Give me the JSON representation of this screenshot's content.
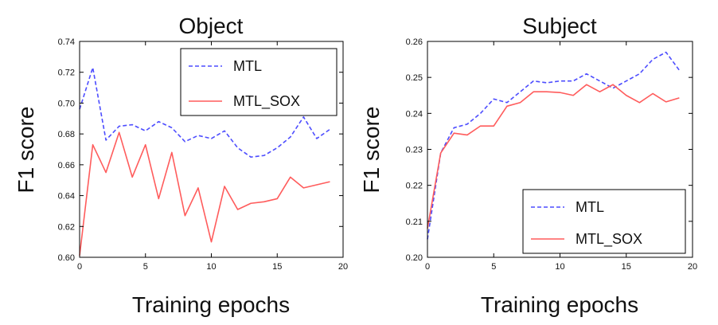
{
  "chart_data": [
    {
      "type": "line",
      "title": "Object",
      "xlabel": "Training epochs",
      "ylabel": "F1 score",
      "xlim": [
        0,
        20
      ],
      "ylim": [
        0.6,
        0.74
      ],
      "xticks": [
        0,
        5,
        10,
        15,
        20
      ],
      "xtick_labels": [
        "0",
        "5",
        "10",
        "15",
        "20"
      ],
      "yticks": [
        0.6,
        0.62,
        0.64,
        0.66,
        0.68,
        0.7,
        0.72,
        0.74
      ],
      "ytick_labels": [
        "0.60",
        "0.62",
        "0.64",
        "0.66",
        "0.68",
        "0.70",
        "0.72",
        "0.74"
      ],
      "grid": false,
      "legend_position": "top-right",
      "x": [
        0,
        1,
        2,
        3,
        4,
        5,
        6,
        7,
        8,
        9,
        10,
        11,
        12,
        13,
        14,
        15,
        16,
        17,
        18,
        19
      ],
      "series": [
        {
          "name": "MTL",
          "color": "#4d4dff",
          "style": "dashed",
          "values": [
            0.696,
            0.723,
            0.676,
            0.685,
            0.686,
            0.682,
            0.688,
            0.684,
            0.675,
            0.679,
            0.677,
            0.682,
            0.671,
            0.665,
            0.666,
            0.671,
            0.678,
            0.691,
            0.677,
            0.683
          ]
        },
        {
          "name": "MTL_SOX",
          "color": "#ff5c5c",
          "style": "solid",
          "values": [
            0.601,
            0.673,
            0.655,
            0.681,
            0.652,
            0.673,
            0.638,
            0.668,
            0.627,
            0.645,
            0.61,
            0.646,
            0.631,
            0.635,
            0.636,
            0.638,
            0.652,
            0.645,
            0.647,
            0.649
          ]
        }
      ]
    },
    {
      "type": "line",
      "title": "Subject",
      "xlabel": "Training epochs",
      "ylabel": "F1 score",
      "xlim": [
        0,
        20
      ],
      "ylim": [
        0.2,
        0.26
      ],
      "xticks": [
        0,
        5,
        10,
        15,
        20
      ],
      "xtick_labels": [
        "0",
        "5",
        "10",
        "15",
        "20"
      ],
      "yticks": [
        0.2,
        0.21,
        0.22,
        0.23,
        0.24,
        0.25,
        0.26
      ],
      "ytick_labels": [
        "0.20",
        "0.21",
        "0.22",
        "0.23",
        "0.24",
        "0.25",
        "0.26"
      ],
      "grid": false,
      "legend_position": "bottom-right",
      "x": [
        0,
        1,
        2,
        3,
        4,
        5,
        6,
        7,
        8,
        9,
        10,
        11,
        12,
        13,
        14,
        15,
        16,
        17,
        18,
        19
      ],
      "series": [
        {
          "name": "MTL",
          "color": "#4d4dff",
          "style": "dashed",
          "values": [
            0.205,
            0.229,
            0.236,
            0.237,
            0.24,
            0.244,
            0.243,
            0.246,
            0.249,
            0.2485,
            0.249,
            0.249,
            0.251,
            0.249,
            0.247,
            0.249,
            0.251,
            0.255,
            0.257,
            0.252
          ]
        },
        {
          "name": "MTL_SOX",
          "color": "#ff5c5c",
          "style": "solid",
          "values": [
            0.208,
            0.229,
            0.2345,
            0.234,
            0.2365,
            0.2365,
            0.242,
            0.243,
            0.246,
            0.246,
            0.2458,
            0.245,
            0.248,
            0.246,
            0.248,
            0.245,
            0.243,
            0.2455,
            0.2432,
            0.2443
          ]
        }
      ]
    }
  ]
}
